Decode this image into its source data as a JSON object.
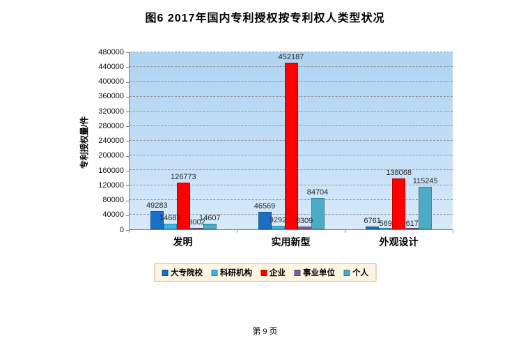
{
  "page": {
    "title": "图6  2017年国内专利授权按专利权人类型状况",
    "footer": "第 9 页"
  },
  "chart_data": {
    "type": "bar",
    "title": "图6  2017年国内专利授权按专利权人类型状况",
    "xlabel": "",
    "ylabel": "专利授权量/件",
    "ylim": [
      0,
      480000
    ],
    "ytick_step": 40000,
    "grid": true,
    "grid_style": "dashed",
    "legend_position": "bottom",
    "plot_bg_top": "#aed4f1",
    "plot_bg_bottom": "#d7eafb",
    "categories": [
      "发明",
      "实用新型",
      "外观设计"
    ],
    "series": [
      {
        "name": "大专院校",
        "color": "#1b6fc5",
        "values": [
          49283,
          46569,
          6761
        ]
      },
      {
        "name": "科研机构",
        "color": "#3db5e7",
        "values": [
          14683,
          9292,
          569
        ]
      },
      {
        "name": "企业",
        "color": "#fe0000",
        "values": [
          126773,
          452187,
          138068
        ]
      },
      {
        "name": "事业单位",
        "color": "#7d60a0",
        "values": [
          3002,
          8309,
          617
        ]
      },
      {
        "name": "个人",
        "color": "#4bacc6",
        "values": [
          14607,
          84704,
          115245
        ]
      }
    ]
  }
}
